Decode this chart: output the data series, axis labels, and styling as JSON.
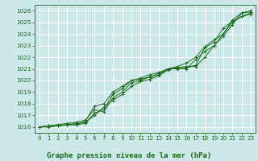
{
  "title": "Graphe pression niveau de la mer (hPa)",
  "bg_color": "#cce8e8",
  "grid_color": "#ffffff",
  "line_color": "#1a6b1a",
  "xlim": [
    -0.5,
    23.5
  ],
  "ylim": [
    1015.5,
    1026.5
  ],
  "yticks": [
    1016,
    1017,
    1018,
    1019,
    1020,
    1021,
    1022,
    1023,
    1024,
    1025,
    1026
  ],
  "xticks": [
    0,
    1,
    2,
    3,
    4,
    5,
    6,
    7,
    8,
    9,
    10,
    11,
    12,
    13,
    14,
    15,
    16,
    17,
    18,
    19,
    20,
    21,
    22,
    23
  ],
  "series": [
    [
      1016.0,
      1016.1,
      1016.1,
      1016.2,
      1016.2,
      1016.3,
      1017.2,
      1017.5,
      1018.8,
      1019.3,
      1020.0,
      1020.1,
      1020.3,
      1020.5,
      1021.0,
      1021.1,
      1021.1,
      1021.3,
      1022.8,
      1023.3,
      1024.5,
      1025.1,
      1025.5,
      1025.7
    ],
    [
      1016.0,
      1016.0,
      1016.1,
      1016.2,
      1016.2,
      1016.5,
      1017.8,
      1018.0,
      1019.0,
      1019.5,
      1020.0,
      1020.2,
      1020.5,
      1020.7,
      1021.0,
      1021.2,
      1021.5,
      1022.0,
      1022.9,
      1023.5,
      1024.0,
      1025.2,
      1025.8,
      1026.0
    ],
    [
      1016.0,
      1016.1,
      1016.2,
      1016.3,
      1016.4,
      1016.6,
      1017.5,
      1017.3,
      1018.5,
      1019.0,
      1019.8,
      1020.0,
      1020.3,
      1020.6,
      1021.0,
      1021.0,
      1021.0,
      1021.8,
      1022.5,
      1023.0,
      1023.8,
      1024.8,
      1025.8,
      1025.9
    ],
    [
      1016.0,
      1016.1,
      1016.1,
      1016.2,
      1016.3,
      1016.4,
      1017.0,
      1017.7,
      1018.3,
      1018.8,
      1019.5,
      1019.9,
      1020.1,
      1020.4,
      1020.9,
      1021.1,
      1021.2,
      1021.2,
      1022.0,
      1023.0,
      1024.0,
      1025.0,
      1025.5,
      1025.8
    ]
  ],
  "xlabel_fontsize": 6.5,
  "tick_fontsize": 5.2
}
